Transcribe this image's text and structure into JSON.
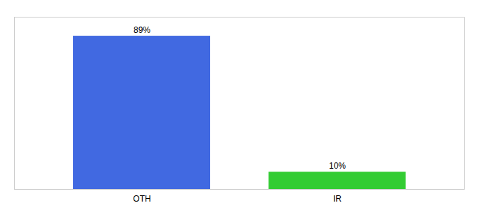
{
  "chart_data": {
    "type": "bar",
    "categories": [
      "OTH",
      "IR"
    ],
    "values": [
      89,
      10
    ],
    "value_labels": [
      "89%",
      "10%"
    ],
    "colors": [
      "#4169e1",
      "#33cc33"
    ],
    "ylim": [
      0,
      100
    ],
    "data_labels": true,
    "tick_labels": "x",
    "grid": false
  }
}
